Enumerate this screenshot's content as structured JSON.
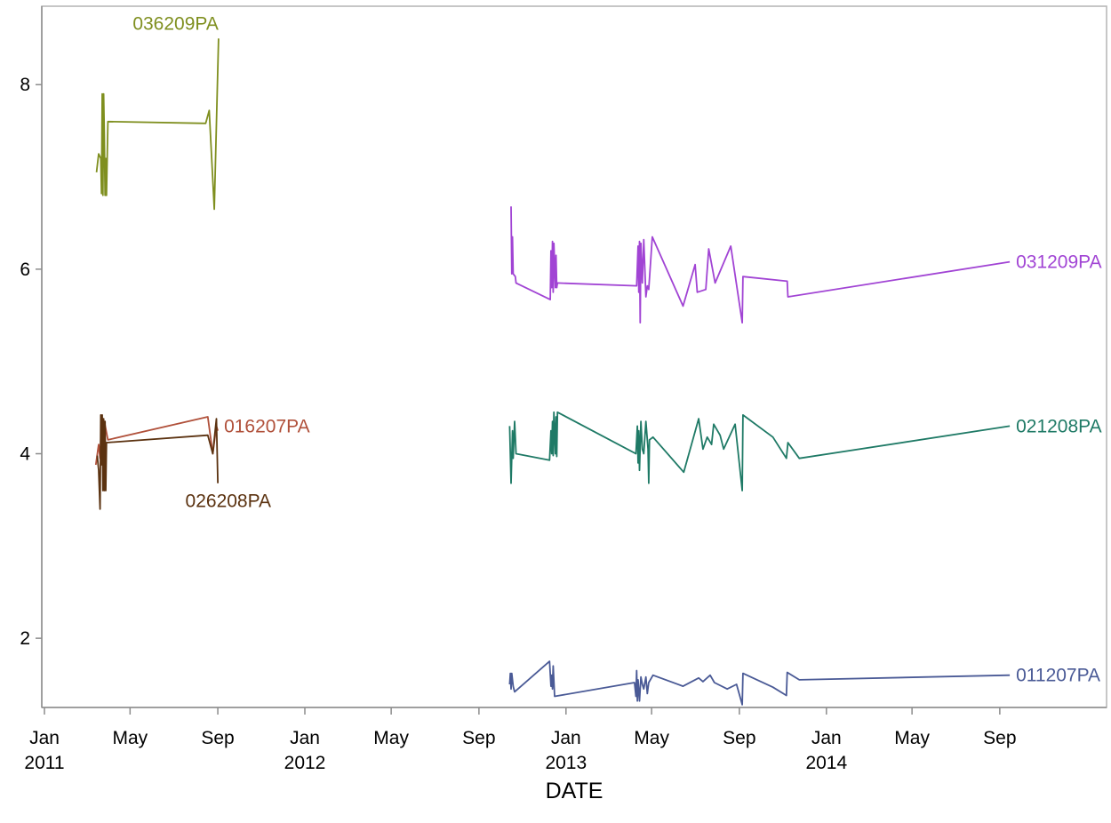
{
  "chart_data": {
    "type": "line",
    "title": "",
    "xlabel": "DATE",
    "ylabel": "",
    "xlim": [
      "2011-01-01",
      "2014-12-31"
    ],
    "ylim": [
      1.25,
      8.85
    ],
    "y_ticks": [
      2,
      4,
      6,
      8
    ],
    "x_ticks": [
      {
        "date": "2011-01-01",
        "label": "Jan",
        "sublabel": "2011"
      },
      {
        "date": "2011-05-01",
        "label": "May",
        "sublabel": ""
      },
      {
        "date": "2011-09-01",
        "label": "Sep",
        "sublabel": ""
      },
      {
        "date": "2012-01-01",
        "label": "Jan",
        "sublabel": "2012"
      },
      {
        "date": "2012-05-01",
        "label": "May",
        "sublabel": ""
      },
      {
        "date": "2012-09-01",
        "label": "Sep",
        "sublabel": ""
      },
      {
        "date": "2013-01-01",
        "label": "Jan",
        "sublabel": "2013"
      },
      {
        "date": "2013-05-01",
        "label": "May",
        "sublabel": ""
      },
      {
        "date": "2013-09-01",
        "label": "Sep",
        "sublabel": ""
      },
      {
        "date": "2014-01-01",
        "label": "Jan",
        "sublabel": "2014"
      },
      {
        "date": "2014-05-01",
        "label": "May",
        "sublabel": ""
      },
      {
        "date": "2014-09-01",
        "label": "Sep",
        "sublabel": ""
      }
    ],
    "grid": false,
    "legend": "none",
    "series": [
      {
        "name": "036209PA",
        "color": "#7f8f1f",
        "label_anchor": "above-end",
        "points": [
          [
            "2011-03-15",
            7.05
          ],
          [
            "2011-03-18",
            7.25
          ],
          [
            "2011-03-21",
            7.2
          ],
          [
            "2011-03-22",
            6.82
          ],
          [
            "2011-03-23",
            7.9
          ],
          [
            "2011-03-24",
            6.8
          ],
          [
            "2011-03-25",
            7.9
          ],
          [
            "2011-03-26",
            7.45
          ],
          [
            "2011-03-27",
            6.8
          ],
          [
            "2011-03-28",
            7.2
          ],
          [
            "2011-03-29",
            6.8
          ],
          [
            "2011-03-31",
            7.6
          ],
          [
            "2011-08-15",
            7.58
          ],
          [
            "2011-08-20",
            7.72
          ],
          [
            "2011-08-27",
            6.65
          ],
          [
            "2011-09-02",
            8.5
          ]
        ]
      },
      {
        "name": "016207PA",
        "color": "#b0503a",
        "label_anchor": "right-end",
        "points": [
          [
            "2011-03-14",
            3.88
          ],
          [
            "2011-03-18",
            4.1
          ],
          [
            "2011-03-20",
            3.95
          ],
          [
            "2011-03-22",
            4.38
          ],
          [
            "2011-03-24",
            3.9
          ],
          [
            "2011-03-26",
            4.35
          ],
          [
            "2011-03-31",
            4.15
          ],
          [
            "2011-08-18",
            4.4
          ],
          [
            "2011-08-25",
            4.0
          ],
          [
            "2011-08-30",
            4.3
          ],
          [
            "2011-09-01",
            4.25
          ]
        ]
      },
      {
        "name": "026208PA",
        "color": "#5b3210",
        "label_anchor": "below-end",
        "points": [
          [
            "2011-03-16",
            3.98
          ],
          [
            "2011-03-18",
            3.82
          ],
          [
            "2011-03-20",
            3.4
          ],
          [
            "2011-03-21",
            4.42
          ],
          [
            "2011-03-22",
            3.88
          ],
          [
            "2011-03-23",
            4.42
          ],
          [
            "2011-03-24",
            3.6
          ],
          [
            "2011-03-25",
            4.38
          ],
          [
            "2011-03-26",
            3.6
          ],
          [
            "2011-03-27",
            4.35
          ],
          [
            "2011-03-28",
            3.6
          ],
          [
            "2011-03-29",
            4.12
          ],
          [
            "2011-08-18",
            4.2
          ],
          [
            "2011-08-25",
            4.0
          ],
          [
            "2011-08-30",
            4.38
          ],
          [
            "2011-09-01",
            3.68
          ]
        ]
      },
      {
        "name": "031209PA",
        "color": "#a144d4",
        "label_anchor": "right-end",
        "points": [
          [
            "2012-10-16",
            6.68
          ],
          [
            "2012-10-17",
            5.95
          ],
          [
            "2012-10-18",
            6.35
          ],
          [
            "2012-10-19",
            5.95
          ],
          [
            "2012-10-22",
            5.92
          ],
          [
            "2012-10-23",
            5.85
          ],
          [
            "2012-12-10",
            5.67
          ],
          [
            "2012-12-11",
            6.2
          ],
          [
            "2012-12-12",
            5.8
          ],
          [
            "2012-12-13",
            6.3
          ],
          [
            "2012-12-14",
            5.75
          ],
          [
            "2012-12-15",
            6.28
          ],
          [
            "2012-12-17",
            5.8
          ],
          [
            "2012-12-18",
            6.15
          ],
          [
            "2012-12-19",
            5.8
          ],
          [
            "2012-12-20",
            5.85
          ],
          [
            "2013-04-10",
            5.82
          ],
          [
            "2013-04-12",
            6.25
          ],
          [
            "2013-04-13",
            5.75
          ],
          [
            "2013-04-14",
            6.3
          ],
          [
            "2013-04-15",
            5.42
          ],
          [
            "2013-04-16",
            6.28
          ],
          [
            "2013-04-18",
            5.85
          ],
          [
            "2013-04-20",
            6.32
          ],
          [
            "2013-04-23",
            5.7
          ],
          [
            "2013-04-25",
            5.82
          ],
          [
            "2013-04-27",
            5.78
          ],
          [
            "2013-05-02",
            6.35
          ],
          [
            "2013-06-14",
            5.6
          ],
          [
            "2013-07-01",
            6.05
          ],
          [
            "2013-07-04",
            5.75
          ],
          [
            "2013-07-16",
            5.78
          ],
          [
            "2013-07-20",
            6.22
          ],
          [
            "2013-07-29",
            5.85
          ],
          [
            "2013-08-20",
            6.25
          ],
          [
            "2013-09-05",
            5.42
          ],
          [
            "2013-09-06",
            5.92
          ],
          [
            "2013-11-07",
            5.87
          ],
          [
            "2013-11-08",
            5.7
          ],
          [
            "2014-09-15",
            6.08
          ]
        ]
      },
      {
        "name": "021208PA",
        "color": "#1f7a66",
        "label_anchor": "right-end",
        "points": [
          [
            "2012-10-14",
            4.3
          ],
          [
            "2012-10-16",
            3.68
          ],
          [
            "2012-10-18",
            4.25
          ],
          [
            "2012-10-19",
            3.95
          ],
          [
            "2012-10-21",
            4.35
          ],
          [
            "2012-10-23",
            4.0
          ],
          [
            "2012-12-09",
            3.93
          ],
          [
            "2012-12-11",
            4.25
          ],
          [
            "2012-12-12",
            4.0
          ],
          [
            "2012-12-13",
            4.35
          ],
          [
            "2012-12-14",
            3.98
          ],
          [
            "2012-12-15",
            4.45
          ],
          [
            "2012-12-17",
            4.0
          ],
          [
            "2012-12-18",
            4.4
          ],
          [
            "2012-12-19",
            3.97
          ],
          [
            "2012-12-20",
            4.45
          ],
          [
            "2013-04-09",
            4.0
          ],
          [
            "2013-04-11",
            4.3
          ],
          [
            "2013-04-12",
            3.9
          ],
          [
            "2013-04-13",
            4.25
          ],
          [
            "2013-04-14",
            3.82
          ],
          [
            "2013-04-16",
            4.35
          ],
          [
            "2013-04-18",
            4.05
          ],
          [
            "2013-04-20",
            4.0
          ],
          [
            "2013-04-23",
            4.35
          ],
          [
            "2013-04-26",
            4.05
          ],
          [
            "2013-04-27",
            3.68
          ],
          [
            "2013-04-28",
            4.15
          ],
          [
            "2013-05-03",
            4.18
          ],
          [
            "2013-06-15",
            3.8
          ],
          [
            "2013-07-06",
            4.38
          ],
          [
            "2013-07-12",
            4.05
          ],
          [
            "2013-07-18",
            4.18
          ],
          [
            "2013-07-24",
            4.1
          ],
          [
            "2013-07-27",
            4.32
          ],
          [
            "2013-08-05",
            4.2
          ],
          [
            "2013-08-10",
            4.05
          ],
          [
            "2013-08-26",
            4.32
          ],
          [
            "2013-09-05",
            3.6
          ],
          [
            "2013-09-06",
            4.42
          ],
          [
            "2013-10-18",
            4.18
          ],
          [
            "2013-11-06",
            3.95
          ],
          [
            "2013-11-08",
            4.12
          ],
          [
            "2013-11-24",
            3.95
          ],
          [
            "2014-09-15",
            4.3
          ]
        ]
      },
      {
        "name": "011207PA",
        "color": "#4a5a96",
        "label_anchor": "right-end",
        "points": [
          [
            "2012-10-14",
            1.5
          ],
          [
            "2012-10-15",
            1.62
          ],
          [
            "2012-10-16",
            1.45
          ],
          [
            "2012-10-17",
            1.62
          ],
          [
            "2012-10-19",
            1.48
          ],
          [
            "2012-10-21",
            1.42
          ],
          [
            "2012-12-09",
            1.75
          ],
          [
            "2012-12-11",
            1.48
          ],
          [
            "2012-12-12",
            1.6
          ],
          [
            "2012-12-13",
            1.45
          ],
          [
            "2012-12-14",
            1.7
          ],
          [
            "2012-12-16",
            1.37
          ],
          [
            "2013-04-07",
            1.52
          ],
          [
            "2013-04-09",
            1.37
          ],
          [
            "2013-04-10",
            1.65
          ],
          [
            "2013-04-11",
            1.32
          ],
          [
            "2013-04-12",
            1.55
          ],
          [
            "2013-04-14",
            1.32
          ],
          [
            "2013-04-16",
            1.58
          ],
          [
            "2013-04-18",
            1.5
          ],
          [
            "2013-04-20",
            1.45
          ],
          [
            "2013-04-23",
            1.58
          ],
          [
            "2013-04-25",
            1.4
          ],
          [
            "2013-04-27",
            1.52
          ],
          [
            "2013-05-03",
            1.6
          ],
          [
            "2013-06-14",
            1.48
          ],
          [
            "2013-07-06",
            1.57
          ],
          [
            "2013-07-12",
            1.53
          ],
          [
            "2013-07-22",
            1.6
          ],
          [
            "2013-07-28",
            1.52
          ],
          [
            "2013-08-15",
            1.45
          ],
          [
            "2013-08-28",
            1.5
          ],
          [
            "2013-09-05",
            1.28
          ],
          [
            "2013-09-06",
            1.62
          ],
          [
            "2013-10-18",
            1.47
          ],
          [
            "2013-11-06",
            1.38
          ],
          [
            "2013-11-07",
            1.63
          ],
          [
            "2013-11-24",
            1.55
          ],
          [
            "2014-09-15",
            1.6
          ]
        ]
      }
    ]
  }
}
